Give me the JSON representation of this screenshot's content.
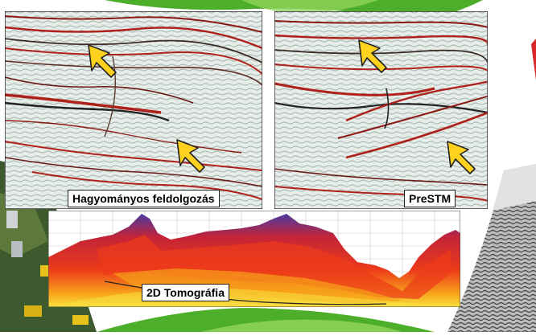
{
  "panels": {
    "conventional": {
      "label": "Hagyományos feldolgozás"
    },
    "prestm": {
      "label": "PreSTM"
    },
    "tomography": {
      "label": "2D Tomográfia"
    }
  },
  "side_photos": {
    "left": "field equipment photo",
    "right": "grayscale seismic section"
  },
  "colors": {
    "green_band": "#4cae2a",
    "seismic_red": "#b0201a",
    "tomo_red": "#e8281c",
    "tomo_blue": "#4a3aa0",
    "tomo_yellow": "#f8d838",
    "arrow_yellow": "#ffd21e"
  },
  "icons": [
    "arrow-icon",
    "arrow-icon",
    "arrow-icon",
    "arrow-icon"
  ]
}
